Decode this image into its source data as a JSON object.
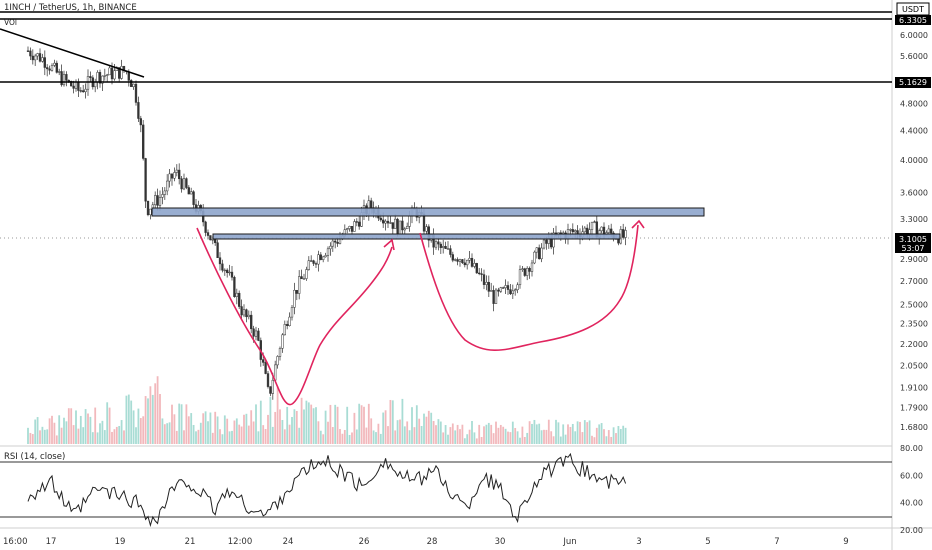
{
  "header": {
    "symbol_line": "1INCH / TetherUS, 1h, BINANCE",
    "indicator_label": "VOl"
  },
  "rsi_panel": {
    "label": "RSI (14, close)"
  },
  "price_badges": {
    "currency": "USDT",
    "top_level": "6.3305",
    "resistance_level": "5.1629",
    "last_price": "3.1005",
    "countdown": "53:07"
  },
  "colors": {
    "up_candle": "#555555",
    "down_candle": "#333333",
    "zone_fill": "#8ea5cc",
    "pattern_curve": "#e0245e",
    "volume_up": "#a8dcd4",
    "volume_down": "#f2b8bc",
    "rsi_line": "#222222"
  },
  "chart_data": [
    {
      "type": "line",
      "title": "1INCH / TetherUS, 1h, BINANCE",
      "y_scale": "log",
      "y_ticks": [
        "6.0000",
        "5.6000",
        "4.8000",
        "4.4000",
        "4.0000",
        "3.6000",
        "3.3000",
        "2.9000",
        "2.7000",
        "2.5000",
        "2.3500",
        "2.2000",
        "2.0500",
        "1.9100",
        "1.7900",
        "1.6800"
      ],
      "x_ticks": [
        "16:00",
        "17",
        "19",
        "21",
        "12:00",
        "24",
        "26",
        "28",
        "30",
        "Jun",
        "3",
        "5",
        "7",
        "9"
      ],
      "series": [
        {
          "name": "",
          "x": [
            "May 16 12:00",
            "May 16 20:00",
            "May 17 08:00",
            "May 17 20:00",
            "May 18 08:00",
            "May 18 20:00",
            "May 19 04:00",
            "May 19 10:00",
            "May 19 14:00",
            "May 19 18:00",
            "May 20 04:00",
            "May 20 14:00",
            "May 21 00:00",
            "May 21 12:00",
            "May 22 00:00",
            "May 22 12:00",
            "May 23 00:00",
            "May 23 08:00",
            "May 23 14:00",
            "May 23 20:00",
            "May 24 04:00",
            "May 24 16:00",
            "May 25 04:00",
            "May 25 16:00",
            "May 26 04:00",
            "May 26 16:00",
            "May 27 00:00",
            "May 27 12:00",
            "May 28 00:00",
            "May 28 12:00",
            "May 29 00:00",
            "May 29 12:00",
            "May 29 20:00",
            "May 30 08:00",
            "May 30 20:00",
            "May 31 08:00",
            "May 31 20:00",
            "Jun 1 08:00",
            "Jun 1 20:00"
          ],
          "values": [
            5.7,
            5.55,
            5.2,
            5.0,
            5.25,
            5.3,
            5.35,
            5.05,
            4.5,
            3.4,
            3.55,
            3.85,
            3.55,
            3.3,
            3.0,
            2.75,
            2.45,
            2.25,
            1.85,
            2.2,
            2.6,
            2.9,
            3.05,
            3.2,
            3.45,
            3.3,
            3.2,
            3.4,
            3.05,
            2.95,
            2.9,
            2.7,
            2.55,
            2.65,
            2.85,
            3.05,
            3.15,
            3.2,
            3.1
          ]
        }
      ]
    },
    {
      "type": "bar",
      "title": "VOl",
      "x": [
        "May 16",
        "May 17",
        "May 18",
        "May 19",
        "May 20",
        "May 21",
        "May 22",
        "May 23",
        "May 24",
        "May 25",
        "May 26",
        "May 27",
        "May 28",
        "May 29",
        "May 30",
        "May 31",
        "Jun 1"
      ],
      "values": [
        3,
        4,
        5,
        6,
        9,
        5,
        4,
        5,
        8,
        5,
        5,
        6,
        4,
        3,
        3,
        3,
        3
      ]
    },
    {
      "type": "line",
      "title": "RSI (14, close)",
      "y_ticks": [
        "80.00",
        "60.00",
        "40.00",
        "20.00"
      ],
      "levels": [
        70,
        30
      ],
      "series": [
        {
          "name": "",
          "x": [
            "May 16 12:00",
            "May 17 00:00",
            "May 17 16:00",
            "May 18 08:00",
            "May 19 00:00",
            "May 19 12:00",
            "May 20 00:00",
            "May 20 12:00",
            "May 21 00:00",
            "May 21 12:00",
            "May 22 00:00",
            "May 22 12:00",
            "May 23 00:00",
            "May 23 12:00",
            "May 24 00:00",
            "May 24 12:00",
            "May 25 00:00",
            "May 25 12:00",
            "May 26 00:00",
            "May 26 12:00",
            "May 27 00:00",
            "May 27 12:00",
            "May 28 00:00",
            "May 28 12:00",
            "May 29 00:00",
            "May 29 12:00",
            "May 30 00:00",
            "May 30 12:00",
            "May 31 00:00",
            "May 31 12:00",
            "Jun 1 00:00",
            "Jun 1 12:00"
          ],
          "values": [
            45,
            55,
            30,
            50,
            45,
            40,
            25,
            50,
            55,
            45,
            35,
            50,
            40,
            30,
            50,
            65,
            70,
            60,
            50,
            72,
            60,
            55,
            65,
            50,
            35,
            60,
            50,
            30,
            55,
            65,
            70,
            55
          ]
        }
      ]
    }
  ]
}
